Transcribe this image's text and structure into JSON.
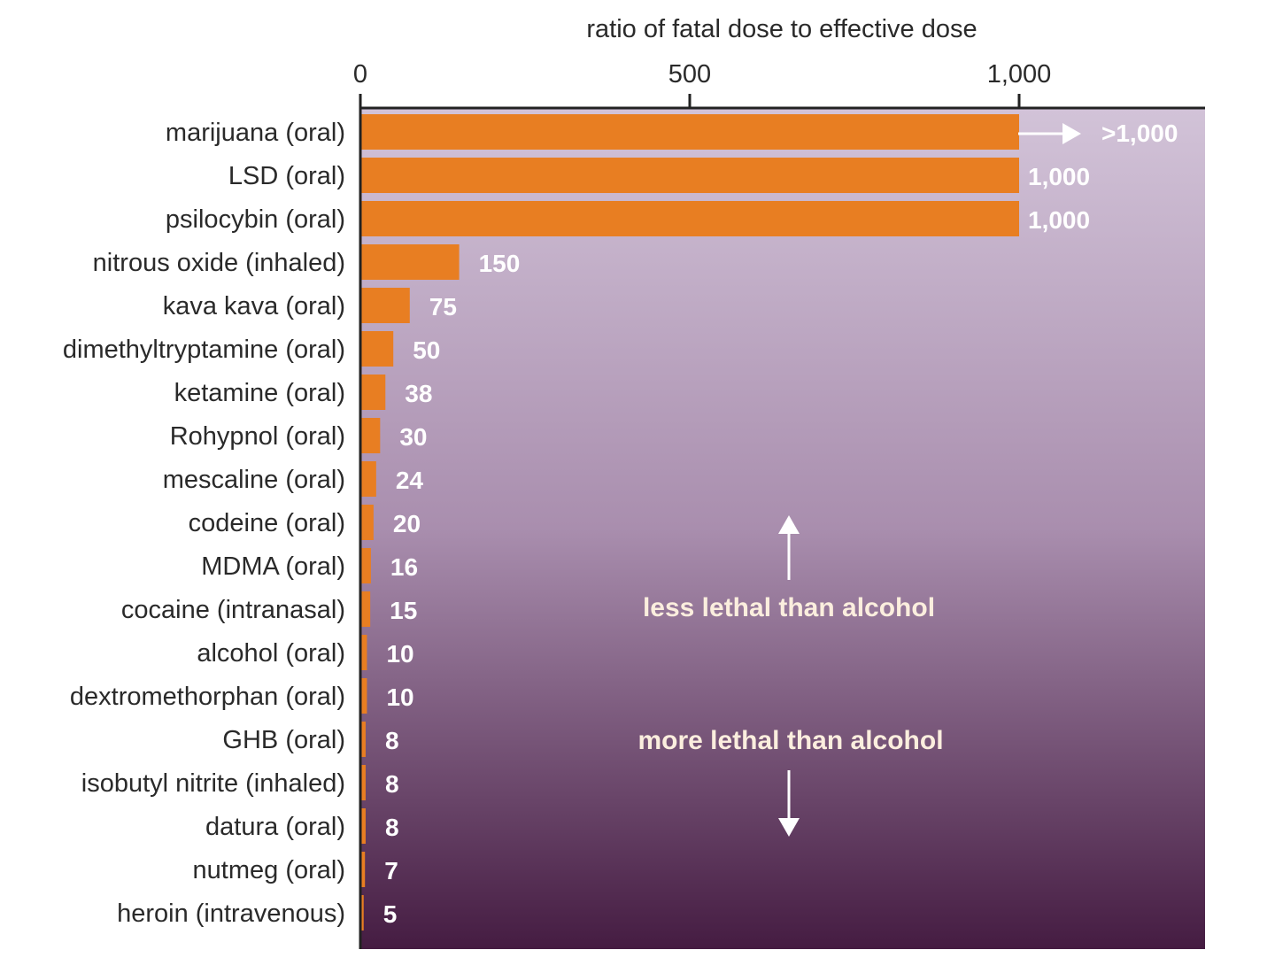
{
  "chart_data": {
    "type": "bar",
    "orientation": "horizontal",
    "title": "",
    "xlabel": "ratio of fatal dose to effective dose",
    "ylabel": "",
    "xlim": [
      0,
      1285
    ],
    "xticks": [
      0,
      500,
      1000
    ],
    "xtick_labels": [
      "0",
      "500",
      "1,000"
    ],
    "grid": false,
    "categories": [
      "marijuana (oral)",
      "LSD (oral)",
      "psilocybin (oral)",
      "nitrous oxide (inhaled)",
      "kava kava (oral)",
      "dimethyltryptamine (oral)",
      "ketamine (oral)",
      "Rohypnol (oral)",
      "mescaline (oral)",
      "codeine (oral)",
      "MDMA (oral)",
      "cocaine (intranasal)",
      "alcohol (oral)",
      "dextromethorphan (oral)",
      "GHB (oral)",
      "isobutyl nitrite (inhaled)",
      "datura (oral)",
      "nutmeg (oral)",
      "heroin (intravenous)"
    ],
    "values": [
      1000,
      1000,
      1000,
      150,
      75,
      50,
      38,
      30,
      24,
      20,
      16,
      15,
      10,
      10,
      8,
      8,
      8,
      7,
      5
    ],
    "value_labels": [
      ">1,000",
      "1,000",
      "1,000",
      "150",
      "75",
      "50",
      "38",
      "30",
      "24",
      "20",
      "16",
      "15",
      "10",
      "10",
      "8",
      "8",
      "8",
      "7",
      "5"
    ],
    "annotations": {
      "upper": "less lethal than alcohol",
      "lower": "more lethal than alcohol"
    },
    "colors": {
      "bar": "#e87e22",
      "background_top": "#d2c3d8",
      "background_mid": "#a98eae",
      "background_bottom": "#451c42",
      "axis": "#222222"
    }
  }
}
